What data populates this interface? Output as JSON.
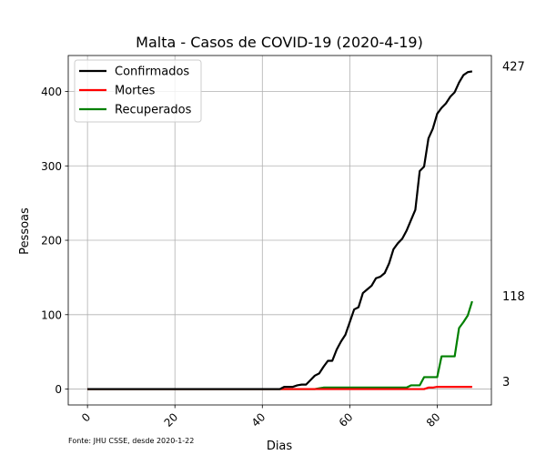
{
  "chart_data": {
    "type": "line",
    "title": "Malta - Casos de COVID-19 (2020-4-19)",
    "xlabel": "Dias",
    "ylabel": "Pessoas",
    "xlim": [
      -4.4,
      92.4
    ],
    "ylim": [
      -21.35,
      448.35
    ],
    "xticks": [
      0,
      20,
      40,
      60,
      80
    ],
    "yticks": [
      0,
      100,
      200,
      300,
      400
    ],
    "grid": true,
    "legend_position": "top-left",
    "footnote": "Fonte: JHU CSSE, desde 2020-1-22",
    "series": [
      {
        "name": "Confirmados",
        "color": "#000000",
        "points": [
          [
            0,
            0
          ],
          [
            44,
            0
          ],
          [
            45,
            3
          ],
          [
            46,
            3
          ],
          [
            47,
            3
          ],
          [
            48,
            5
          ],
          [
            49,
            6
          ],
          [
            50,
            6
          ],
          [
            51,
            12
          ],
          [
            52,
            18
          ],
          [
            53,
            21
          ],
          [
            54,
            30
          ],
          [
            55,
            38
          ],
          [
            56,
            38
          ],
          [
            57,
            53
          ],
          [
            58,
            64
          ],
          [
            59,
            73
          ],
          [
            60,
            90
          ],
          [
            61,
            107
          ],
          [
            62,
            110
          ],
          [
            63,
            129
          ],
          [
            64,
            134
          ],
          [
            65,
            139
          ],
          [
            66,
            149
          ],
          [
            67,
            151
          ],
          [
            68,
            156
          ],
          [
            69,
            169
          ],
          [
            70,
            188
          ],
          [
            71,
            196
          ],
          [
            72,
            202
          ],
          [
            73,
            213
          ],
          [
            74,
            227
          ],
          [
            75,
            241
          ],
          [
            76,
            293
          ],
          [
            77,
            299
          ],
          [
            78,
            337
          ],
          [
            79,
            350
          ],
          [
            80,
            370
          ],
          [
            81,
            378
          ],
          [
            82,
            384
          ],
          [
            83,
            393
          ],
          [
            84,
            399
          ],
          [
            85,
            412
          ],
          [
            86,
            422
          ],
          [
            87,
            426
          ],
          [
            88,
            427
          ]
        ]
      },
      {
        "name": "Mortes",
        "color": "#ff0000",
        "points": [
          [
            0,
            0
          ],
          [
            77,
            0
          ],
          [
            78,
            2
          ],
          [
            79,
            2
          ],
          [
            80,
            3
          ],
          [
            81,
            3
          ],
          [
            82,
            3
          ],
          [
            83,
            3
          ],
          [
            84,
            3
          ],
          [
            85,
            3
          ],
          [
            86,
            3
          ],
          [
            87,
            3
          ],
          [
            88,
            3
          ]
        ]
      },
      {
        "name": "Recuperados",
        "color": "#008000",
        "points": [
          [
            0,
            0
          ],
          [
            52,
            0
          ],
          [
            53,
            1
          ],
          [
            54,
            2
          ],
          [
            55,
            2
          ],
          [
            56,
            2
          ],
          [
            57,
            2
          ],
          [
            58,
            2
          ],
          [
            59,
            2
          ],
          [
            60,
            2
          ],
          [
            61,
            2
          ],
          [
            62,
            2
          ],
          [
            63,
            2
          ],
          [
            64,
            2
          ],
          [
            65,
            2
          ],
          [
            66,
            2
          ],
          [
            67,
            2
          ],
          [
            68,
            2
          ],
          [
            69,
            2
          ],
          [
            70,
            2
          ],
          [
            71,
            2
          ],
          [
            72,
            2
          ],
          [
            73,
            2
          ],
          [
            74,
            5
          ],
          [
            75,
            5
          ],
          [
            76,
            5
          ],
          [
            77,
            16
          ],
          [
            78,
            16
          ],
          [
            79,
            16
          ],
          [
            80,
            16
          ],
          [
            81,
            44
          ],
          [
            82,
            44
          ],
          [
            83,
            44
          ],
          [
            84,
            44
          ],
          [
            85,
            82
          ],
          [
            86,
            90
          ],
          [
            87,
            99
          ],
          [
            88,
            118
          ]
        ]
      }
    ],
    "end_labels": [
      {
        "text": "427",
        "value": 427
      },
      {
        "text": "118",
        "value": 118
      },
      {
        "text": "3",
        "value": 3
      }
    ]
  }
}
